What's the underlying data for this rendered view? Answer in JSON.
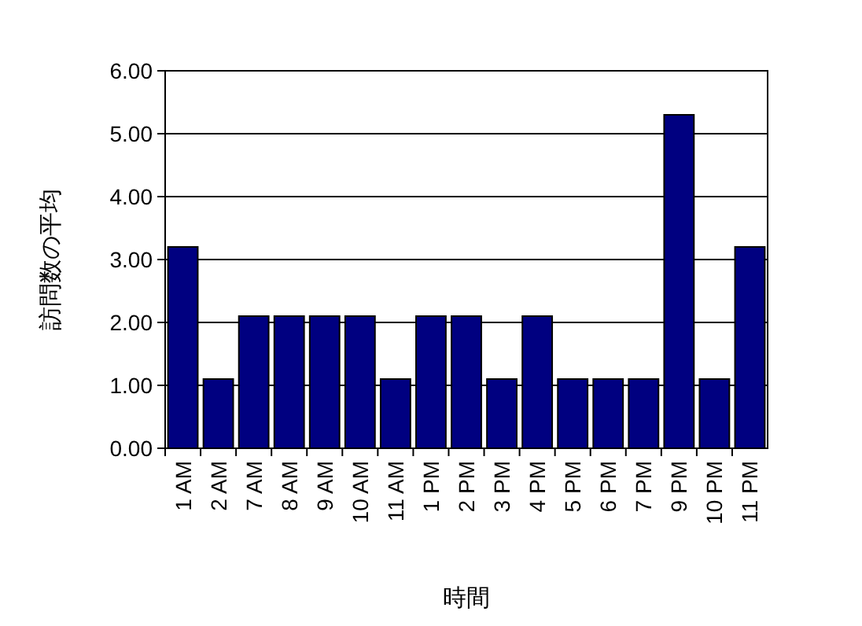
{
  "chart_data": {
    "type": "bar",
    "xlabel": "時間",
    "ylabel": "訪問数の平均",
    "categories": [
      "1 AM",
      "2 AM",
      "7 AM",
      "8 AM",
      "9 AM",
      "10 AM",
      "11 AM",
      "1 PM",
      "2 PM",
      "3 PM",
      "4 PM",
      "5 PM",
      "6 PM",
      "7 PM",
      "9 PM",
      "10 PM",
      "11 PM"
    ],
    "values": [
      3.2,
      1.1,
      2.1,
      2.1,
      2.1,
      2.1,
      1.1,
      2.1,
      2.1,
      1.1,
      2.1,
      1.1,
      1.1,
      1.1,
      5.3,
      1.1,
      3.2
    ],
    "color": "#000080",
    "ylim": [
      0,
      6
    ],
    "yticks": [
      {
        "value": 0,
        "label": "0.00"
      },
      {
        "value": 1,
        "label": "1.00"
      },
      {
        "value": 2,
        "label": "2.00"
      },
      {
        "value": 3,
        "label": "3.00"
      },
      {
        "value": 4,
        "label": "4.00"
      },
      {
        "value": 5,
        "label": "5.00"
      },
      {
        "value": 6,
        "label": "6.00"
      }
    ],
    "grid": "y"
  }
}
